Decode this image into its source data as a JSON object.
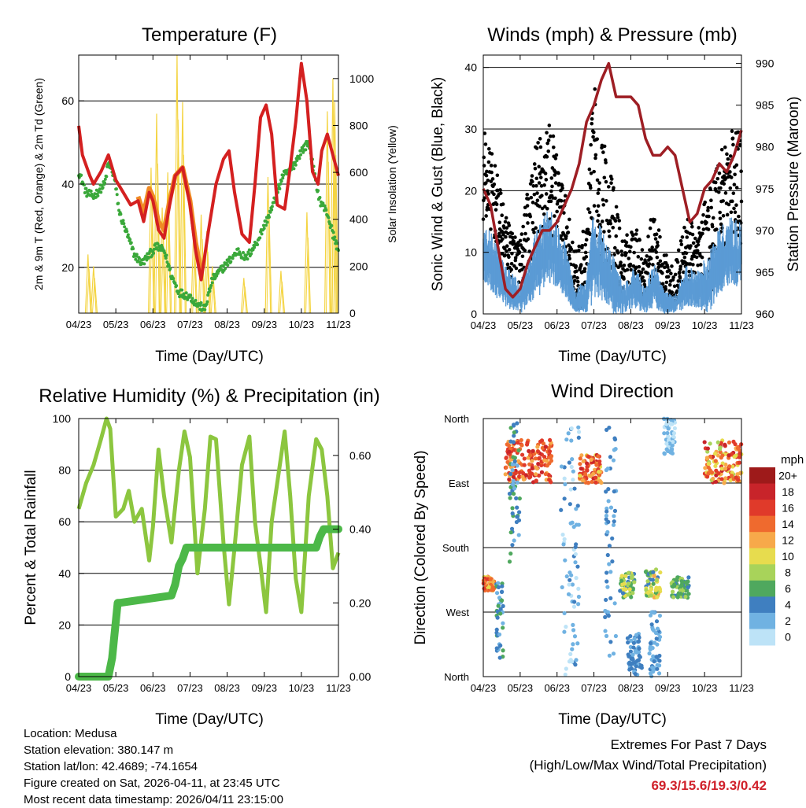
{
  "panels": {
    "temperature": {
      "title": "Temperature (F)",
      "xlabel": "Time (Day/UTC)",
      "ylabel_left": "2m & 9m T (Red, Orange) & 2m Td (Green)",
      "ylabel_right": "Solar Insolation (Yellow)"
    },
    "winds": {
      "title": "Winds (mph) & Pressure (mb)",
      "xlabel": "Time (Day/UTC)",
      "ylabel_left": "Sonic Wind & Gust (Blue, Black)",
      "ylabel_right": "Station Pressure (Maroon)"
    },
    "humidity": {
      "title": "Relative Humidity (%) & Precipitation (in)",
      "xlabel": "Time (Day/UTC)",
      "ylabel_left": "Percent & Total Rainfall"
    },
    "direction": {
      "title": "Wind Direction",
      "xlabel": "Time (Day/UTC)",
      "ylabel_left": "Direction (Colored By Speed)",
      "colorbar_title": "mph"
    }
  },
  "footer": {
    "location": "Location: Medusa",
    "elevation": "Station elevation: 380.147 m",
    "latlon": "Station lat/lon: 42.4689; -74.1654",
    "created": "Figure created on Sat, 2026-04-11, at 23:45 UTC",
    "recent": "Most recent data timestamp: 2026/04/11 23:15:00"
  },
  "extremes": {
    "line1": "Extremes For Past 7 Days",
    "line2": "(High/Low/Max Wind/Total Precipitation)",
    "values": "69.3/15.6/19.3/0.42"
  },
  "chart_data": [
    {
      "type": "line",
      "title": "Temperature (F)",
      "xlabel": "Time (Day/UTC)",
      "ylabel": "2m & 9m T (Red, Orange) & 2m Td (Green)",
      "y2label": "Solar Insolation (Yellow)",
      "x_ticks": [
        "04/23",
        "05/23",
        "06/23",
        "07/23",
        "08/23",
        "09/23",
        "10/23",
        "11/23"
      ],
      "xlim": [
        0,
        7
      ],
      "ylim": [
        9,
        71
      ],
      "y_ticks": [
        20,
        40,
        60
      ],
      "y2lim": [
        0,
        1100
      ],
      "y2_ticks": [
        0,
        200,
        400,
        600,
        800,
        1000
      ],
      "series": [
        {
          "name": "2m T",
          "color": "#d42020",
          "x": [
            0,
            0.1,
            0.3,
            0.4,
            0.6,
            0.8,
            1.0,
            1.2,
            1.4,
            1.6,
            1.75,
            1.9,
            2.0,
            2.15,
            2.3,
            2.45,
            2.6,
            2.8,
            3.0,
            3.15,
            3.3,
            3.5,
            3.7,
            3.9,
            4.05,
            4.2,
            4.4,
            4.6,
            4.75,
            4.9,
            5.05,
            5.2,
            5.35,
            5.55,
            5.7,
            5.85,
            6.0,
            6.15,
            6.3,
            6.45,
            6.55,
            6.7,
            6.85,
            7.0
          ],
          "y": [
            54,
            47,
            42,
            40,
            43,
            47,
            41,
            38,
            35,
            36,
            31,
            38,
            36,
            29,
            27,
            35,
            42,
            44,
            35,
            24,
            17,
            29,
            40,
            46,
            48,
            38,
            28,
            26,
            40,
            56,
            59,
            52,
            35,
            34,
            44,
            55,
            69,
            60,
            43,
            40,
            48,
            52,
            47,
            42
          ]
        },
        {
          "name": "9m T",
          "color": "#f08a24",
          "x": [
            1.6,
            1.75,
            1.9,
            2.0,
            2.15,
            2.3,
            2.45,
            2.6,
            2.8,
            3.0,
            3.15,
            3.3
          ],
          "y": [
            37,
            33,
            39,
            37,
            31,
            29,
            36,
            42,
            44,
            36,
            26,
            19
          ]
        },
        {
          "name": "2m Td",
          "color": "#3aa83a",
          "x": [
            0,
            0.2,
            0.4,
            0.7,
            0.8,
            0.95,
            1.1,
            1.3,
            1.5,
            1.7,
            1.9,
            2.1,
            2.3,
            2.5,
            2.7,
            3.0,
            3.2,
            3.4,
            3.6,
            3.9,
            4.1,
            4.3,
            4.5,
            4.8,
            5.0,
            5.2,
            5.5,
            5.7,
            6.0,
            6.2,
            6.4,
            6.5,
            6.7,
            6.85,
            7.0
          ],
          "y": [
            43,
            38,
            37,
            40,
            45,
            42,
            33,
            28,
            23,
            21,
            23,
            25,
            24,
            18,
            14,
            13,
            11,
            10,
            17,
            20,
            22,
            24,
            22,
            26,
            30,
            34,
            42,
            43,
            48,
            50,
            40,
            36,
            33,
            28,
            24
          ]
        },
        {
          "name": "Solar Insolation",
          "color": "#f4d442",
          "axis": "right",
          "peak_x": [
            0.25,
            0.4,
            1.95,
            2.1,
            2.25,
            2.4,
            2.65,
            2.8,
            3.1,
            3.3,
            3.45,
            3.6,
            4.45,
            5.1,
            5.45,
            6.15,
            6.7,
            6.85,
            6.9
          ],
          "peak_y": [
            250,
            200,
            620,
            850,
            450,
            600,
            1100,
            900,
            380,
            420,
            350,
            200,
            150,
            580,
            180,
            430,
            860,
            1000,
            900
          ]
        }
      ]
    },
    {
      "type": "scatter",
      "title": "Winds (mph) & Pressure (mb)",
      "xlabel": "Time (Day/UTC)",
      "ylabel": "Sonic Wind & Gust (Blue, Black)",
      "y2label": "Station Pressure (Maroon)",
      "x_ticks": [
        "04/23",
        "05/23",
        "06/23",
        "07/23",
        "08/23",
        "09/23",
        "10/23",
        "11/23"
      ],
      "xlim": [
        0,
        7
      ],
      "ylim": [
        0,
        42
      ],
      "y_ticks": [
        0,
        10,
        20,
        30,
        40
      ],
      "y2lim": [
        960,
        991
      ],
      "y2_ticks": [
        960,
        965,
        970,
        975,
        980,
        985,
        990
      ],
      "series": [
        {
          "name": "Gust",
          "color": "#000000",
          "env_x": [
            0,
            0.3,
            0.6,
            1.0,
            1.4,
            1.8,
            2.2,
            2.5,
            2.8,
            3.0,
            3.2,
            3.5,
            3.8,
            4.1,
            4.4,
            4.6,
            4.9,
            5.2,
            5.5,
            5.8,
            6.1,
            6.4,
            6.7,
            7.0
          ],
          "env_lo": [
            15,
            12,
            8,
            2,
            8,
            13,
            10,
            0,
            2,
            10,
            8,
            3,
            2,
            5,
            2,
            5,
            2,
            1,
            5,
            4,
            2,
            8,
            14,
            10
          ],
          "env_hi": [
            30,
            25,
            16,
            12,
            28,
            32,
            20,
            10,
            15,
            38,
            30,
            22,
            12,
            15,
            10,
            18,
            10,
            8,
            16,
            14,
            20,
            28,
            30,
            30
          ]
        },
        {
          "name": "Sonic Wind",
          "color": "#5b9bd5",
          "env_x": [
            0,
            0.3,
            0.6,
            1.0,
            1.4,
            1.8,
            2.2,
            2.5,
            2.8,
            3.0,
            3.2,
            3.5,
            3.8,
            4.1,
            4.4,
            4.6,
            4.9,
            5.2,
            5.5,
            5.8,
            6.1,
            6.4,
            6.7,
            7.0
          ],
          "env_lo": [
            5,
            3,
            1,
            0,
            2,
            5,
            3,
            0,
            0,
            2,
            2,
            0,
            0,
            1,
            0,
            1,
            0,
            0,
            1,
            1,
            0,
            3,
            5,
            4
          ],
          "env_hi": [
            16,
            12,
            8,
            5,
            13,
            18,
            12,
            4,
            6,
            18,
            14,
            10,
            5,
            8,
            4,
            9,
            4,
            3,
            8,
            7,
            10,
            14,
            16,
            15
          ]
        },
        {
          "name": "Station Pressure",
          "color": "#9e1e24",
          "axis": "right",
          "x": [
            0,
            0.2,
            0.4,
            0.6,
            0.8,
            1.0,
            1.2,
            1.4,
            1.6,
            1.8,
            2.0,
            2.2,
            2.4,
            2.6,
            2.8,
            3.0,
            3.2,
            3.4,
            3.6,
            3.8,
            4.0,
            4.2,
            4.4,
            4.6,
            4.8,
            5.0,
            5.2,
            5.4,
            5.6,
            5.8,
            6.0,
            6.2,
            6.4,
            6.6,
            6.8,
            7.0
          ],
          "y": [
            975,
            973,
            968,
            963,
            962,
            963,
            966,
            968,
            970,
            970,
            971,
            973,
            975,
            978,
            983,
            985,
            988,
            990,
            986,
            986,
            986,
            985,
            981,
            979,
            979,
            980,
            979,
            975,
            971,
            972,
            975,
            976,
            978,
            977,
            979,
            982
          ]
        }
      ]
    },
    {
      "type": "line",
      "title": "Relative Humidity (%) & Precipitation (in)",
      "xlabel": "Time (Day/UTC)",
      "ylabel": "Percent & Total Rainfall",
      "x_ticks": [
        "04/23",
        "05/23",
        "06/23",
        "07/23",
        "08/23",
        "09/23",
        "10/23",
        "11/23"
      ],
      "xlim": [
        0,
        7
      ],
      "ylim": [
        0,
        100
      ],
      "y_ticks": [
        0,
        20,
        40,
        60,
        80,
        100
      ],
      "y2lim": [
        0,
        0.7
      ],
      "y2_ticks": [
        "0.00",
        "0.20",
        "0.40",
        "0.60"
      ],
      "series": [
        {
          "name": "Relative Humidity",
          "color": "#8cc63f",
          "x": [
            0,
            0.2,
            0.4,
            0.6,
            0.75,
            0.85,
            1.0,
            1.2,
            1.35,
            1.5,
            1.7,
            1.9,
            2.0,
            2.15,
            2.3,
            2.5,
            2.7,
            2.85,
            3.0,
            3.2,
            3.4,
            3.55,
            3.7,
            3.9,
            4.05,
            4.2,
            4.4,
            4.6,
            4.75,
            4.9,
            5.05,
            5.2,
            5.4,
            5.55,
            5.7,
            5.85,
            6.0,
            6.2,
            6.4,
            6.55,
            6.7,
            6.85,
            7.0
          ],
          "y": [
            65,
            75,
            82,
            92,
            100,
            96,
            62,
            65,
            72,
            60,
            65,
            45,
            58,
            88,
            70,
            52,
            80,
            95,
            85,
            40,
            65,
            93,
            92,
            52,
            28,
            50,
            82,
            93,
            60,
            43,
            25,
            60,
            80,
            95,
            70,
            38,
            25,
            70,
            92,
            88,
            70,
            42,
            48
          ]
        },
        {
          "name": "Total Rainfall",
          "color": "#4cb848",
          "axis": "right",
          "x": [
            0,
            0.8,
            0.9,
            0.95,
            1.0,
            1.05,
            1.1,
            2.5,
            2.6,
            2.7,
            2.8,
            2.9,
            3.0,
            6.4,
            6.5,
            6.6,
            7.0
          ],
          "y": [
            0,
            0,
            0.05,
            0.1,
            0.15,
            0.2,
            0.2,
            0.22,
            0.25,
            0.3,
            0.32,
            0.35,
            0.35,
            0.35,
            0.38,
            0.4,
            0.4
          ]
        }
      ]
    },
    {
      "type": "scatter",
      "title": "Wind Direction",
      "xlabel": "Time (Day/UTC)",
      "ylabel": "Direction (Colored By Speed)",
      "x_ticks": [
        "04/23",
        "05/23",
        "06/23",
        "07/23",
        "08/23",
        "09/23",
        "10/23",
        "11/23"
      ],
      "xlim": [
        0,
        7
      ],
      "y_ticks": [
        "North",
        "West",
        "South",
        "East",
        "North"
      ],
      "ylim_degrees": [
        0,
        360
      ],
      "colorbar": {
        "title": "mph",
        "labels": [
          "20+",
          "18",
          "16",
          "14",
          "12",
          "10",
          "8",
          "6",
          "4",
          "2",
          "0"
        ],
        "colors": [
          "#9e1a1a",
          "#c8242a",
          "#e03a2a",
          "#ef6a2e",
          "#f7a94a",
          "#e7dc4e",
          "#a8d35a",
          "#4fa85e",
          "#3f7fc0",
          "#70b2e2",
          "#bde3f7"
        ]
      },
      "clusters": [
        {
          "x": [
            0.0,
            0.3
          ],
          "dir": [
            120,
            140
          ],
          "speed": [
            10,
            16
          ]
        },
        {
          "x": [
            0.35,
            0.55
          ],
          "dir": [
            20,
            140
          ],
          "speed": [
            2,
            6
          ]
        },
        {
          "x": [
            0.6,
            1.9
          ],
          "dir": [
            270,
            330
          ],
          "speed": [
            12,
            18
          ]
        },
        {
          "x": [
            0.7,
            1.0
          ],
          "dir": [
            160,
            360
          ],
          "speed": [
            2,
            6
          ]
        },
        {
          "x": [
            2.1,
            2.6
          ],
          "dir": [
            0,
            360
          ],
          "speed": [
            0,
            4
          ]
        },
        {
          "x": [
            2.6,
            3.2
          ],
          "dir": [
            270,
            310
          ],
          "speed": [
            10,
            18
          ]
        },
        {
          "x": [
            3.3,
            3.6
          ],
          "dir": [
            0,
            360
          ],
          "speed": [
            1,
            5
          ]
        },
        {
          "x": [
            3.7,
            4.1
          ],
          "dir": [
            110,
            145
          ],
          "speed": [
            4,
            10
          ]
        },
        {
          "x": [
            3.9,
            4.3
          ],
          "dir": [
            0,
            60
          ],
          "speed": [
            2,
            4
          ]
        },
        {
          "x": [
            4.4,
            4.8
          ],
          "dir": [
            110,
            150
          ],
          "speed": [
            4,
            12
          ]
        },
        {
          "x": [
            4.5,
            4.8
          ],
          "dir": [
            0,
            90
          ],
          "speed": [
            1,
            4
          ]
        },
        {
          "x": [
            5.1,
            5.6
          ],
          "dir": [
            110,
            140
          ],
          "speed": [
            3,
            8
          ]
        },
        {
          "x": [
            4.9,
            5.2
          ],
          "dir": [
            310,
            360
          ],
          "speed": [
            0,
            2
          ]
        },
        {
          "x": [
            6.0,
            7.0
          ],
          "dir": [
            270,
            330
          ],
          "speed": [
            8,
            18
          ]
        }
      ]
    }
  ]
}
